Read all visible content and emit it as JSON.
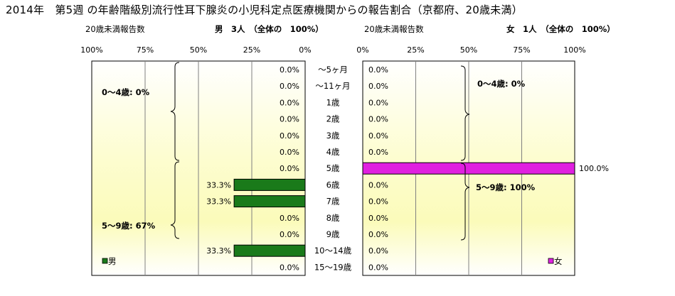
{
  "title": "2014年　第5週 の年齢階級別流行性耳下腺炎の小児科定点医療機関からの報告割合（京都府、20歳未満）",
  "left_panel": {
    "header_label": "20歳未満報告数",
    "header_summary": "男　3人　（全体の　100%）",
    "group_labels": [
      "0～4歳:  0%",
      "5～9歳: 67%"
    ],
    "legend": "男",
    "color": "#1a7a1a"
  },
  "right_panel": {
    "header_label": "20歳未満報告数",
    "header_summary": "女　1人　（全体の　100%）",
    "group_labels": [
      "0～4歳:  0%",
      "5～9歳: 100%"
    ],
    "legend": "女",
    "color": "#e020e0"
  },
  "chart_data": {
    "type": "bar",
    "orientation": "horizontal",
    "categories": [
      "～5ヶ月",
      "～11ヶ月",
      "1歳",
      "2歳",
      "3歳",
      "4歳",
      "5歳",
      "6歳",
      "7歳",
      "8歳",
      "9歳",
      "10～14歳",
      "15～19歳"
    ],
    "series": [
      {
        "name": "男",
        "values": [
          0,
          0,
          0,
          0,
          0,
          0,
          0,
          33.3,
          33.3,
          0,
          0,
          33.3,
          0
        ]
      },
      {
        "name": "女",
        "values": [
          0,
          0,
          0,
          0,
          0,
          0,
          100,
          0,
          0,
          0,
          0,
          0,
          0
        ]
      }
    ],
    "xlim": [
      0,
      100
    ],
    "left_ticks": [
      "100%",
      "75%",
      "50%",
      "25%",
      "0%"
    ],
    "right_ticks": [
      "0%",
      "25%",
      "50%",
      "75%",
      "100%"
    ],
    "value_unit": "%",
    "grid": true,
    "legend": [
      "男",
      "女"
    ]
  }
}
